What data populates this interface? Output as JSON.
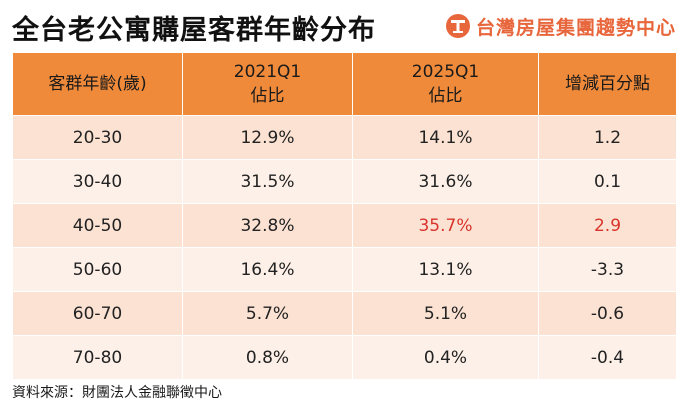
{
  "title": "全台老公寓購屋客群年齡分布",
  "brand": {
    "name": "台灣房屋集團趨勢中心",
    "icon": "building-logo-icon",
    "color": "#e8663c"
  },
  "table": {
    "headers": [
      {
        "line1": "客群年齡(歲)",
        "line2": ""
      },
      {
        "line1": "2021Q1",
        "line2": "佔比"
      },
      {
        "line1": "2025Q1",
        "line2": "佔比"
      },
      {
        "line1": "增減百分點",
        "line2": ""
      }
    ],
    "rows": [
      {
        "age": "20-30",
        "q2021": "12.9%",
        "q2025": "14.1%",
        "change": "1.2",
        "highlight": false
      },
      {
        "age": "30-40",
        "q2021": "31.5%",
        "q2025": "31.6%",
        "change": "0.1",
        "highlight": false
      },
      {
        "age": "40-50",
        "q2021": "32.8%",
        "q2025": "35.7%",
        "change": "2.9",
        "highlight": true
      },
      {
        "age": "50-60",
        "q2021": "16.4%",
        "q2025": "13.1%",
        "change": "-3.3",
        "highlight": false
      },
      {
        "age": "60-70",
        "q2021": "5.7%",
        "q2025": "5.1%",
        "change": "-0.6",
        "highlight": false
      },
      {
        "age": "70-80",
        "q2021": "0.8%",
        "q2025": "0.4%",
        "change": "-0.4",
        "highlight": false
      }
    ],
    "colors": {
      "header": "#ef8a3a",
      "row_odd": "#fbe2d3",
      "row_even": "#fdf0e8",
      "highlight_text": "#d9342b"
    }
  },
  "source": "資料來源：財團法人金融聯徵中心"
}
